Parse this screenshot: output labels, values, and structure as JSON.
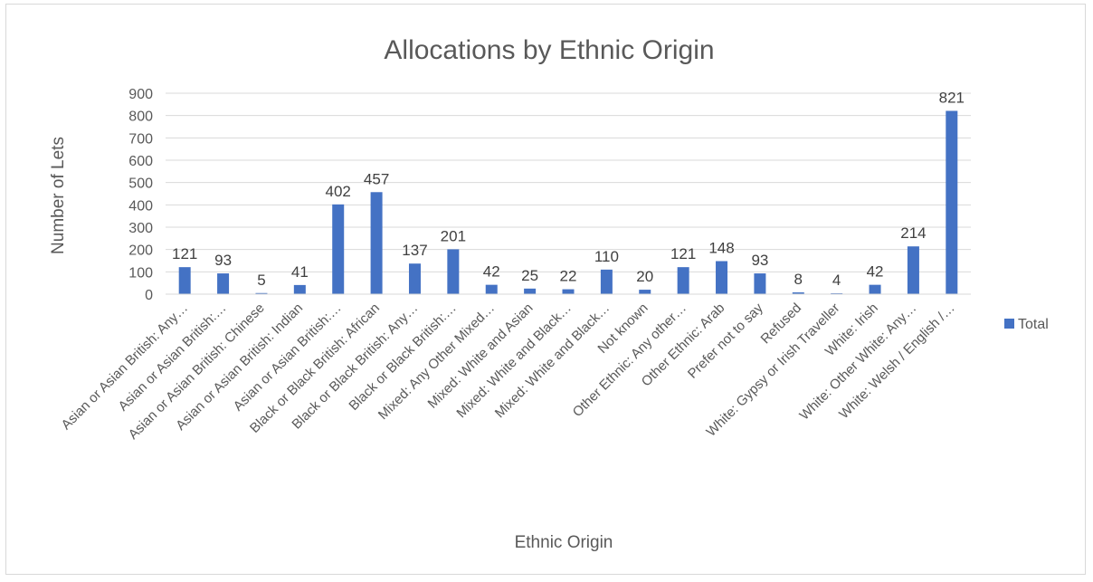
{
  "chart_data": {
    "type": "bar",
    "title": "Allocations by Ethnic Origin",
    "xlabel": "Ethnic Origin",
    "ylabel": "Number of Lets",
    "ylim": [
      0,
      900
    ],
    "yticks": [
      "0",
      "100",
      "200",
      "300",
      "400",
      "500",
      "600",
      "700",
      "800",
      "900"
    ],
    "grid": true,
    "legend_position": "right",
    "categories": [
      "Asian or Asian British: Any…",
      "Asian or Asian British:…",
      "Asian or Asian British: Chinese",
      "Asian or Asian British: Indian",
      "Asian or Asian British:…",
      "Black or Black British: African",
      "Black or Black British: Any…",
      "Black or Black British:…",
      "Mixed: Any Other Mixed…",
      "Mixed: White and Asian",
      "Mixed: White and Black…",
      "Mixed: White and Black…",
      "Not known",
      "Other Ethnic: Any other…",
      "Other Ethnic: Arab",
      "Prefer not to say",
      "Refused",
      "White: Gypsy or Irish Traveller",
      "White: Irish",
      "White: Other White: Any…",
      "White: Welsh / English /…"
    ],
    "series": [
      {
        "name": "Total",
        "color": "#4472c4",
        "values": [
          121,
          93,
          5,
          41,
          402,
          457,
          137,
          201,
          42,
          25,
          22,
          110,
          20,
          121,
          148,
          93,
          8,
          4,
          42,
          214,
          821
        ]
      }
    ]
  }
}
